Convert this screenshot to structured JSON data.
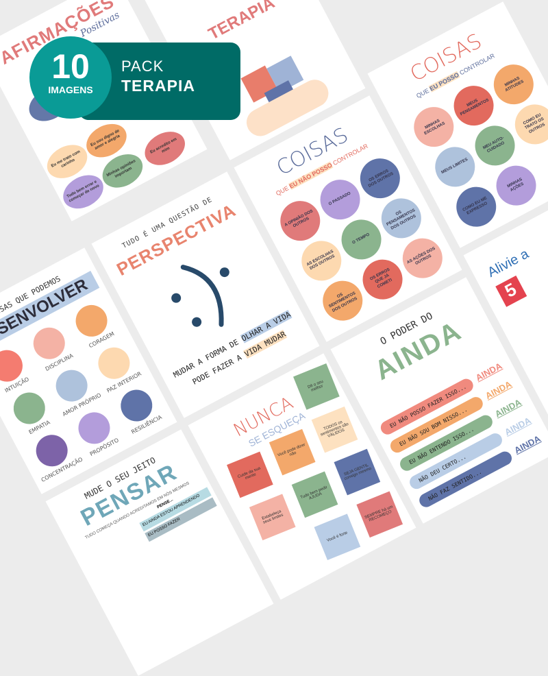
{
  "background": "#ececec",
  "banner": {
    "count": "10",
    "count_label": "IMAGENS",
    "pack": "PACK",
    "title": "TERAPIA",
    "color": "#006b66",
    "badge_color": "#0a9b96"
  },
  "afirmacoes": {
    "title": "AFIRMAÇÕES",
    "subtitle": "Positivas",
    "bubbles": [
      "Eu acredito em mim",
      "Minhas opiniões importam",
      "Eu me trato com carinho",
      "Eu sou digno de amor e alegria",
      "Tudo bem errar e começar de novo"
    ]
  },
  "puzzle": {
    "title": "TERAPIA"
  },
  "coisas_posso": {
    "title": "COISAS",
    "subtitle_pre": "QUE",
    "subtitle_em": "EU POSSO",
    "subtitle_post": "CONTROLAR",
    "items": [
      "MINHAS ESCOLHAS",
      "MEUS PENSAMENTOS",
      "MINHAS ATITUDES",
      "MEUS LIMITES",
      "MEU AUTO-CUIDADO",
      "COMO EU TRATO OS OUTROS",
      "COMO EU ME EXPRESSO",
      "MINHAS AÇÕES"
    ]
  },
  "coisas_nao": {
    "title": "COISAS",
    "subtitle_pre": "QUE",
    "subtitle_em": "EU NÃO POSSO",
    "subtitle_post": "CONTROLAR",
    "items": [
      "A OPINIÃO DOS OUTROS",
      "O PASSADO",
      "OS ERROS DOS OUTROS",
      "AS ESCOLHAS DOS OUTROS",
      "O TEMPO",
      "OS PENSAMENTOS DOS OUTROS",
      "OS SENTIMENTOS DOS OUTROS",
      "OS ERROS QUE JÁ COMETI",
      "AS AÇÕES DOS OUTROS"
    ]
  },
  "perspectiva": {
    "kicker": "TUDO É UMA QUESTÃO DE",
    "title": "PERSPECTIVA",
    "line1_pre": "MUDAR A FORMA DE",
    "line1_em": "OLHAR A VIDA",
    "line2_pre": "PODE FAZER A",
    "line2_em": "VIDA MUDAR"
  },
  "desenvolver": {
    "kicker": "COISAS QUE PODEMOS",
    "title": "DESENVOLVER",
    "items": [
      "INTUIÇÃO",
      "DISCIPLINA",
      "CORAGEM",
      "EMPATIA",
      "AMOR PRÓPRIO",
      "PAZ INTERIOR",
      "CONCENTRAÇÃO",
      "PROPÓSITO",
      "RESILIÊNCIA"
    ]
  },
  "ainda": {
    "kicker": "O PODER DO",
    "title": "AINDA",
    "rows": [
      "EU NÃO POSSO FAZER ISSO...",
      "EU NÃO SOU BOM NISSO...",
      "EU NÃO ENTENDO ISSO...",
      "NÃO DEU CERTO...",
      "NÃO FAZ SENTIDO..."
    ],
    "word": "AINDA"
  },
  "nunca": {
    "title": "NUNCA",
    "subtitle": "SE ESQUEÇA",
    "notes": [
      "Cuide da sua mente",
      "Dê o seu melhor",
      "Estabeleça seus limites",
      "Você pode dizer não",
      "TODOS os sentimentos são VÁLIDOS",
      "Tudo bem pedir AJUDA",
      "Você é forte",
      "SEJA GENTIL consigo mesmo",
      "SEMPRE há um RECOMEÇO"
    ]
  },
  "pensar": {
    "kicker": "MUDE O SEU JEITO",
    "title": "PENSAR",
    "subtitle": "TUDO COMEÇA QUANDO ACREDITAMOS EM NÓS MESMOS",
    "pense": "PENSE...",
    "rows": [
      "EU AINDA ESTOU APRENDENDO",
      "EU POSSO FAZER"
    ]
  },
  "alivie": {
    "title": "Alivie a",
    "number": "5"
  }
}
